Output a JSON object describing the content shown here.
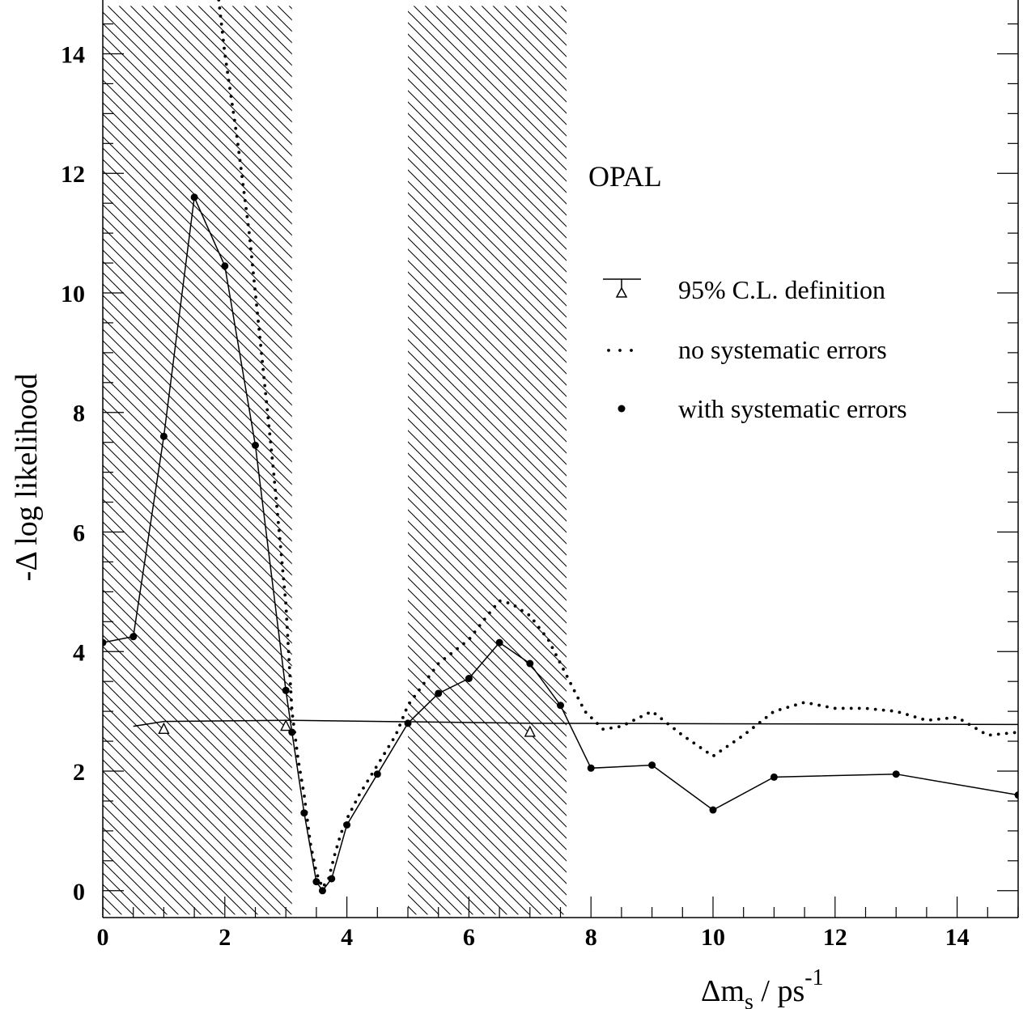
{
  "chart_data": {
    "type": "line",
    "title": "",
    "annotation": "OPAL",
    "xlabel": {
      "main": "Δm",
      "sub": "s",
      "unit": " / ps",
      "sup": "-1"
    },
    "ylabel": "-Δ log likelihood",
    "xlim": [
      0,
      15
    ],
    "ylim": [
      -0.45,
      14.9
    ],
    "x_ticks": [
      0,
      2,
      4,
      6,
      8,
      10,
      12,
      14
    ],
    "y_ticks": [
      0,
      2,
      4,
      6,
      8,
      10,
      12,
      14
    ],
    "grid": false,
    "legend_placement": "right",
    "excluded_regions": [
      [
        0,
        3.1
      ],
      [
        5.0,
        7.6
      ]
    ],
    "series": [
      {
        "name": "95% C.L. definition",
        "style": "line-triangles",
        "x": [
          0.5,
          1.0,
          3.0,
          3.1,
          7.0,
          15.0
        ],
        "y": [
          2.75,
          2.83,
          2.85,
          2.85,
          2.8,
          2.78
        ],
        "markers": [
          [
            1.0,
            2.7
          ],
          [
            3.0,
            2.75
          ],
          [
            7.0,
            2.65
          ]
        ]
      },
      {
        "name": "no systematic errors",
        "style": "dotted",
        "x": [
          1.9,
          2.0,
          2.2,
          2.4,
          2.6,
          2.8,
          3.0,
          3.1,
          3.2,
          3.3,
          3.4,
          3.5,
          3.6,
          3.7,
          3.8,
          3.9,
          4.0,
          4.2,
          4.5,
          4.8,
          5.0,
          5.5,
          6.0,
          6.3,
          6.5,
          6.7,
          7.0,
          7.3,
          7.6,
          7.9,
          8.2,
          8.5,
          9.0,
          9.5,
          10.0,
          10.5,
          11.0,
          11.5,
          12.0,
          12.5,
          13.0,
          13.5,
          14.0,
          14.5,
          15.0
        ],
        "y": [
          14.9,
          14.0,
          12.6,
          11.0,
          9.0,
          7.0,
          4.8,
          3.0,
          2.2,
          1.6,
          0.8,
          0.3,
          0.05,
          0.2,
          0.6,
          0.95,
          1.2,
          1.6,
          2.1,
          2.6,
          3.1,
          3.8,
          4.2,
          4.6,
          4.85,
          4.8,
          4.6,
          4.2,
          3.6,
          3.0,
          2.7,
          2.75,
          3.0,
          2.6,
          2.25,
          2.6,
          3.0,
          3.15,
          3.05,
          3.05,
          3.0,
          2.85,
          2.9,
          2.6,
          2.65
        ]
      },
      {
        "name": "with systematic errors",
        "style": "line-dots",
        "x": [
          0.0,
          0.5,
          1.0,
          1.5,
          2.0,
          2.5,
          3.0,
          3.1,
          3.3,
          3.5,
          3.6,
          3.75,
          4.0,
          4.5,
          5.0,
          5.5,
          6.0,
          6.5,
          7.0,
          7.5,
          8.0,
          9.0,
          10.0,
          11.0,
          13.0,
          15.0
        ],
        "y": [
          4.15,
          4.25,
          7.6,
          11.6,
          10.45,
          7.45,
          3.35,
          2.65,
          1.3,
          0.15,
          0.0,
          0.2,
          1.1,
          1.95,
          2.8,
          3.3,
          3.55,
          4.15,
          3.8,
          3.1,
          2.05,
          2.1,
          1.35,
          1.9,
          1.95,
          1.6
        ]
      }
    ]
  }
}
